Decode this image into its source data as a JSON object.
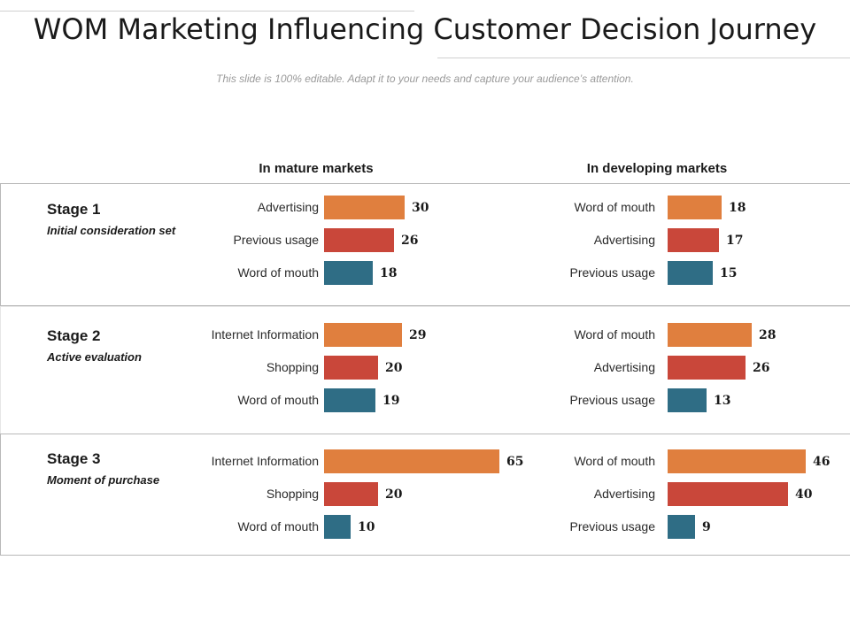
{
  "header": {
    "title": "WOM Marketing Influencing Customer Decision Journey",
    "subtitle": "This slide is 100% editable. Adapt it to your needs and capture your audience’s attention."
  },
  "colors": {
    "orange": "#E07F3E",
    "red": "#C9473A",
    "teal": "#2F6D85"
  },
  "chart_data": {
    "type": "bar",
    "orientation": "horizontal",
    "title": "WOM Marketing Influencing Customer Decision Journey",
    "column_headers": [
      "In mature markets",
      "In developing markets"
    ],
    "stages": [
      {
        "name": "Stage 1",
        "description": "Initial consideration set",
        "mature": [
          {
            "label": "Advertising",
            "value": 30
          },
          {
            "label": "Previous usage",
            "value": 26
          },
          {
            "label": "Word of mouth",
            "value": 18
          }
        ],
        "developing": [
          {
            "label": "Word of mouth",
            "value": 18
          },
          {
            "label": "Advertising",
            "value": 17
          },
          {
            "label": "Previous usage",
            "value": 15
          }
        ]
      },
      {
        "name": "Stage 2",
        "description": "Active evaluation",
        "mature": [
          {
            "label": "Internet Information",
            "value": 29
          },
          {
            "label": "Shopping",
            "value": 20
          },
          {
            "label": "Word of mouth",
            "value": 19
          }
        ],
        "developing": [
          {
            "label": "Word of mouth",
            "value": 28
          },
          {
            "label": "Advertising",
            "value": 26
          },
          {
            "label": "Previous usage",
            "value": 13
          }
        ]
      },
      {
        "name": "Stage 3",
        "description": "Moment of purchase",
        "mature": [
          {
            "label": "Internet Information",
            "value": 65
          },
          {
            "label": "Shopping",
            "value": 20
          },
          {
            "label": "Word of mouth",
            "value": 10
          }
        ],
        "developing": [
          {
            "label": "Word of mouth",
            "value": 46
          },
          {
            "label": "Advertising",
            "value": 40
          },
          {
            "label": "Previous usage",
            "value": 9
          }
        ]
      }
    ]
  }
}
